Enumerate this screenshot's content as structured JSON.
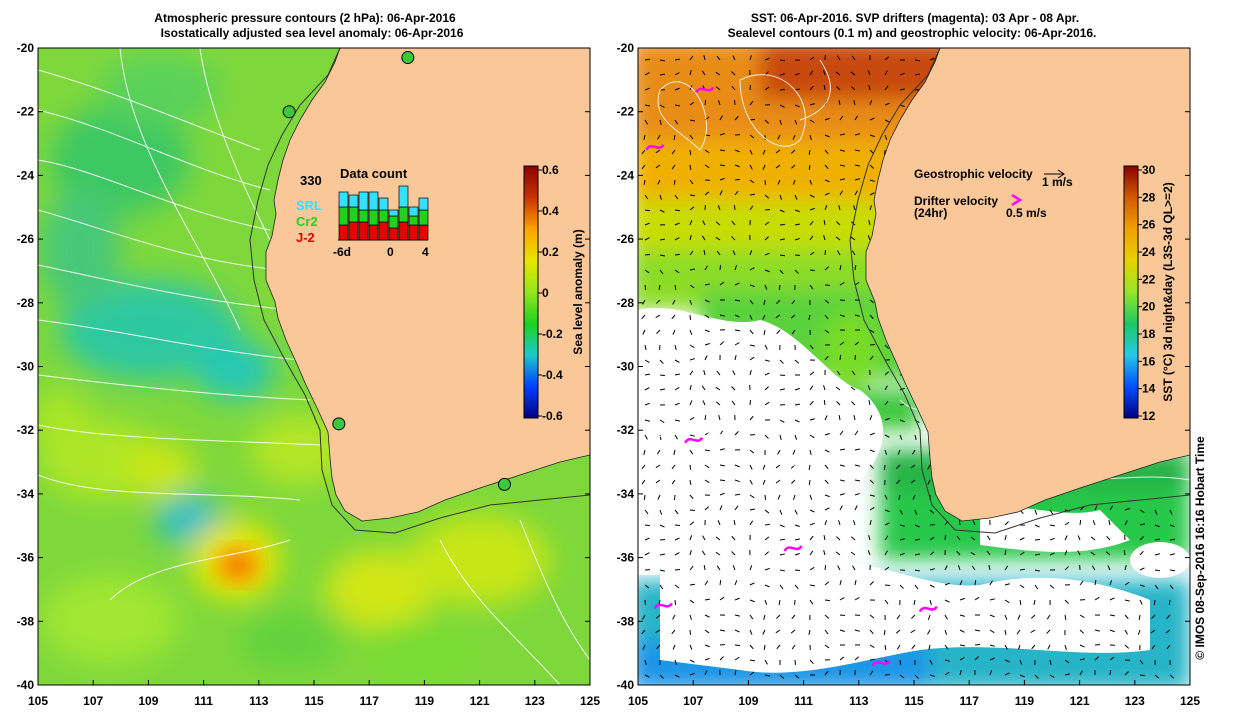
{
  "left_panel": {
    "title_line1": "Atmospheric pressure contours (2 hPa): 06-Apr-2016",
    "title_line2": "Isostatically adjusted sea level anomaly: 06-Apr-2016",
    "colorbar": {
      "label": "Sea level anomaly (m)",
      "ticks": [
        "0.6",
        "0.4",
        "0.2",
        "0",
        "-0.2",
        "-0.4",
        "-0.6"
      ],
      "range": [
        -0.6,
        0.6
      ]
    },
    "inset": {
      "title": "Data count",
      "max_label": "330",
      "legend": [
        {
          "label": "SRL",
          "color": "#33e0ff"
        },
        {
          "label": "Cr2",
          "color": "#1ed21e"
        },
        {
          "label": "J-2",
          "color": "#e80000"
        }
      ],
      "x_labels": [
        "-6d",
        "0",
        "4"
      ],
      "bars": [
        {
          "j2": 0.25,
          "cr2": 0.3,
          "srl": 0.25
        },
        {
          "j2": 0.3,
          "cr2": 0.25,
          "srl": 0.2
        },
        {
          "j2": 0.3,
          "cr2": 0.2,
          "srl": 0.3
        },
        {
          "j2": 0.25,
          "cr2": 0.25,
          "srl": 0.3
        },
        {
          "j2": 0.3,
          "cr2": 0.2,
          "srl": 0.2
        },
        {
          "j2": 0.2,
          "cr2": 0.2,
          "srl": 0.1
        },
        {
          "j2": 0.3,
          "cr2": 0.25,
          "srl": 0.35
        },
        {
          "j2": 0.25,
          "cr2": 0.15,
          "srl": 0.15
        },
        {
          "j2": 0.25,
          "cr2": 0.25,
          "srl": 0.2
        }
      ]
    },
    "stations": [
      {
        "lon": 118.4,
        "lat": -20.3
      },
      {
        "lon": 114.1,
        "lat": -22.0
      },
      {
        "lon": 115.9,
        "lat": -31.8
      },
      {
        "lon": 121.9,
        "lat": -33.7
      }
    ]
  },
  "right_panel": {
    "title_line1": "SST: 06-Apr-2016. SVP drifters (magenta): 03 Apr - 08 Apr.",
    "title_line2": "Sealevel contours (0.1 m) and geostrophic velocity: 06-Apr-2016.",
    "colorbar": {
      "label": "SST (°C) 3d night&day (L3S-3d QL>=2)",
      "ticks": [
        "30",
        "28",
        "26",
        "24",
        "22",
        "20",
        "18",
        "16",
        "14",
        "12"
      ],
      "range": [
        12,
        30
      ]
    },
    "legend": {
      "geo_label": "Geostrophic velocity",
      "geo_scale": "1 m/s",
      "drifter_label": "Drifter velocity",
      "drifter_sub": "(24hr)",
      "drifter_scale": "0.5 m/s"
    },
    "drifters": [
      {
        "lon": 107.4,
        "lat": -21.3
      },
      {
        "lon": 105.6,
        "lat": -23.1
      },
      {
        "lon": 107.0,
        "lat": -32.3
      },
      {
        "lon": 110.6,
        "lat": -35.7
      },
      {
        "lon": 105.9,
        "lat": -37.5
      },
      {
        "lon": 115.5,
        "lat": -37.6
      },
      {
        "lon": 113.8,
        "lat": -39.3
      }
    ]
  },
  "axes": {
    "lat_ticks": [
      -20,
      -22,
      -24,
      -26,
      -28,
      -30,
      -32,
      -34,
      -36,
      -38,
      -40
    ],
    "lon_ticks": [
      105,
      107,
      109,
      111,
      113,
      115,
      117,
      119,
      121,
      123,
      125
    ],
    "lon_range": [
      105,
      125
    ],
    "lat_range": [
      -40,
      -20
    ]
  },
  "colors": {
    "land": "#fac898",
    "sla_stops": [
      "#000080",
      "#0040ff",
      "#1ec8c8",
      "#1ed21e",
      "#96e61e",
      "#e6e600",
      "#ffa000",
      "#c83200",
      "#8b0000"
    ],
    "sst_stops": [
      "#000080",
      "#0050ff",
      "#28c8e6",
      "#1ec864",
      "#96e628",
      "#e6d200",
      "#f0a000",
      "#d25a00",
      "#8b0000"
    ],
    "drifter": "#ff00ff"
  },
  "copyright": "© IMOS 08-Sep-2016 16:16 Hobart Time"
}
